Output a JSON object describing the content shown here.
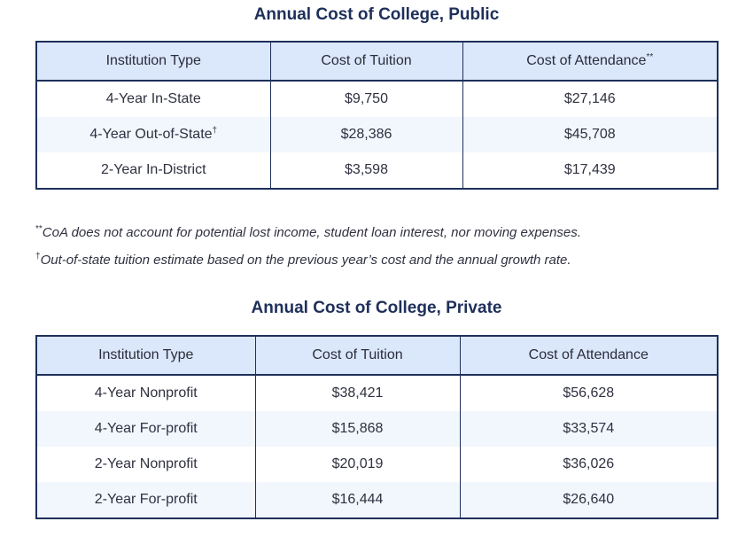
{
  "public": {
    "title": "Annual Cost of College, Public",
    "headers": {
      "institution": "Institution Type",
      "tuition": "Cost of Tuition",
      "attendance": "Cost of Attendance",
      "attendance_mark": "**"
    },
    "rows": [
      {
        "institution": "4-Year In-State",
        "mark": "",
        "tuition": "$9,750",
        "attendance": "$27,146"
      },
      {
        "institution": "4-Year Out-of-State",
        "mark": "†",
        "tuition": "$28,386",
        "attendance": "$45,708"
      },
      {
        "institution": "2-Year In-District",
        "mark": "",
        "tuition": "$3,598",
        "attendance": "$17,439"
      }
    ]
  },
  "notes": [
    {
      "mark": "**",
      "text": "CoA does not account for potential lost income, student loan interest, nor moving expenses."
    },
    {
      "mark": "†",
      "text": "Out-of-state tuition estimate based on the previous year’s cost and the annual growth rate."
    }
  ],
  "private": {
    "title": "Annual Cost of College, Private",
    "headers": {
      "institution": "Institution Type",
      "tuition": "Cost of Tuition",
      "attendance": "Cost of Attendance"
    },
    "rows": [
      {
        "institution": "4-Year Nonprofit",
        "tuition": "$38,421",
        "attendance": "$56,628"
      },
      {
        "institution": "4-Year For-profit",
        "tuition": "$15,868",
        "attendance": "$33,574"
      },
      {
        "institution": "2-Year Nonprofit",
        "tuition": "$20,019",
        "attendance": "$36,026"
      },
      {
        "institution": "2-Year For-profit",
        "tuition": "$16,444",
        "attendance": "$26,640"
      }
    ]
  }
}
